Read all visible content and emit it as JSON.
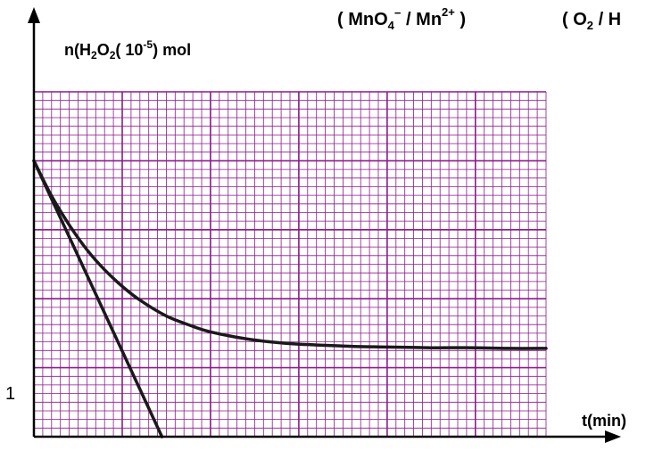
{
  "header": {
    "couple_1": {
      "open": "( MnO",
      "sub": "4",
      "sup": "−",
      "mid": " / Mn",
      "sup2": "2+",
      "close": " )"
    },
    "couple_2": {
      "open": "( O",
      "sub": "2",
      "rest": " / H"
    }
  },
  "colors": {
    "grid": "#8b1a8b",
    "curve": "#1a1a1a",
    "axis": "#000000"
  },
  "chart_data": {
    "type": "line",
    "title": "",
    "xlabel": "t(min)",
    "ylabel": {
      "n": "n(H",
      "sub1": "2",
      "o": "O",
      "sub2": "2",
      "paren": "( 10",
      "exp": "-5",
      "unit": ") mol"
    },
    "y_tick_labels": [
      {
        "value": 1,
        "label": "1"
      }
    ],
    "xlim": [
      0,
      5.8
    ],
    "ylim": [
      0,
      5
    ],
    "grid": true,
    "series": [
      {
        "x": [
          0,
          0.2,
          0.4,
          0.6,
          0.8,
          1.0,
          1.2,
          1.5,
          1.8,
          2.0,
          2.4,
          2.8,
          3.2,
          3.6,
          4.0,
          4.5,
          5.0,
          5.4,
          5.8
        ],
        "y": [
          4.0,
          3.49,
          3.07,
          2.71,
          2.42,
          2.18,
          1.98,
          1.75,
          1.6,
          1.52,
          1.42,
          1.36,
          1.33,
          1.31,
          1.3,
          1.29,
          1.29,
          1.28,
          1.28
        ]
      },
      {
        "x": [
          0,
          1.45
        ],
        "y": [
          4.0,
          0
        ]
      }
    ]
  }
}
